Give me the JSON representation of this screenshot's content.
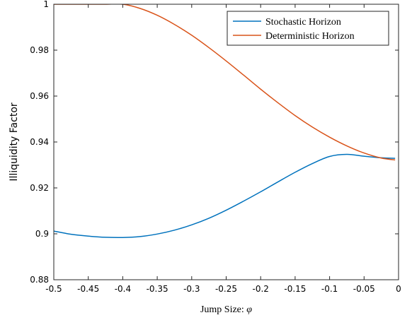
{
  "chart_data": {
    "type": "line",
    "title": "",
    "xlabel_text": "Jump Size: ",
    "xlabel_symbol": "φ",
    "ylabel": "Illiquidity Factor",
    "xlim": [
      -0.5,
      0
    ],
    "ylim": [
      0.88,
      1
    ],
    "x_ticks": [
      -0.5,
      -0.45,
      -0.4,
      -0.35,
      -0.3,
      -0.25,
      -0.2,
      -0.15,
      -0.1,
      -0.05,
      0
    ],
    "x_tick_labels": [
      "-0.5",
      "-0.45",
      "-0.4",
      "-0.35",
      "-0.3",
      "-0.25",
      "-0.2",
      "-0.15",
      "-0.1",
      "-0.05",
      "0"
    ],
    "y_ticks": [
      0.88,
      0.9,
      0.92,
      0.94,
      0.96,
      0.98,
      1
    ],
    "y_tick_labels": [
      "0.88",
      "0.9",
      "0.92",
      "0.94",
      "0.96",
      "0.98",
      "1"
    ],
    "grid": false,
    "legend_position": "top-right",
    "series": [
      {
        "name": "Stochastic Horizon",
        "color": "#0072BD",
        "x": [
          -0.5,
          -0.475,
          -0.45,
          -0.425,
          -0.4,
          -0.375,
          -0.35,
          -0.325,
          -0.3,
          -0.275,
          -0.25,
          -0.225,
          -0.2,
          -0.175,
          -0.15,
          -0.125,
          -0.1,
          -0.075,
          -0.05,
          -0.025,
          -0.005
        ],
        "y": [
          0.9012,
          0.8998,
          0.899,
          0.8985,
          0.8984,
          0.8988,
          0.8999,
          0.9016,
          0.9039,
          0.9068,
          0.9103,
          0.9142,
          0.9183,
          0.9226,
          0.9268,
          0.9306,
          0.9337,
          0.9346,
          0.9338,
          0.9331,
          0.9329
        ]
      },
      {
        "name": "Deterministic Horizon",
        "color": "#D95319",
        "x": [
          -0.5,
          -0.475,
          -0.45,
          -0.425,
          -0.4,
          -0.375,
          -0.35,
          -0.325,
          -0.3,
          -0.275,
          -0.25,
          -0.225,
          -0.2,
          -0.175,
          -0.15,
          -0.125,
          -0.1,
          -0.075,
          -0.05,
          -0.025,
          -0.005
        ],
        "y": [
          1.0,
          1.0,
          1.0,
          1.0,
          1.0,
          0.9982,
          0.9952,
          0.9912,
          0.9865,
          0.9811,
          0.9753,
          0.9692,
          0.963,
          0.9571,
          0.9515,
          0.9465,
          0.9421,
          0.9383,
          0.9352,
          0.933,
          0.9322
        ]
      }
    ]
  }
}
